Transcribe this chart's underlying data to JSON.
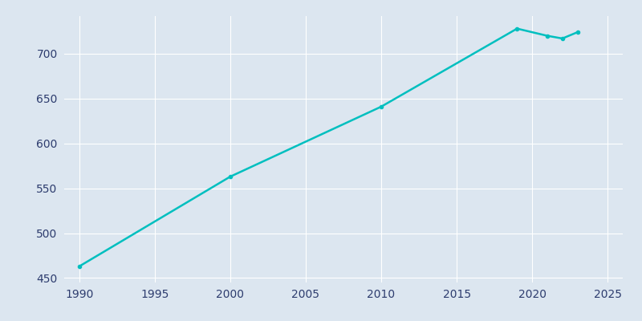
{
  "years": [
    1990,
    2000,
    2010,
    2019,
    2021,
    2022,
    2023
  ],
  "population": [
    463,
    563,
    641,
    728,
    720,
    717,
    724
  ],
  "line_color": "#00BFBF",
  "background_color": "#dce6f0",
  "grid_color": "#ffffff",
  "tick_color": "#2d3c6e",
  "xlim": [
    1989,
    2026
  ],
  "ylim": [
    445,
    742
  ],
  "yticks": [
    450,
    500,
    550,
    600,
    650,
    700
  ],
  "xticks": [
    1990,
    1995,
    2000,
    2005,
    2010,
    2015,
    2020,
    2025
  ],
  "marker": "o",
  "marker_size": 3,
  "line_width": 1.8,
  "figsize": [
    8.0,
    4.0
  ],
  "dpi": 100
}
